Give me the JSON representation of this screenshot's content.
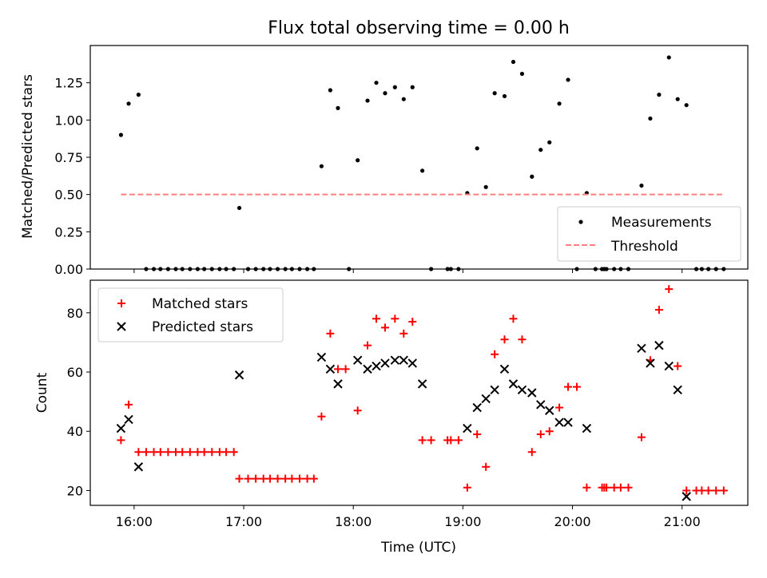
{
  "chart_data": [
    {
      "type": "scatter",
      "title": "Flux total observing time = 0.00 h",
      "xlabel": "",
      "ylabel": "Matched/Predicted stars",
      "xlim": [
        15.6,
        21.6
      ],
      "ylim": [
        0.0,
        1.5
      ],
      "xticks": [
        16,
        17,
        18,
        19,
        20,
        21
      ],
      "yticks": [
        0.0,
        0.25,
        0.5,
        0.75,
        1.0,
        1.25
      ],
      "ytick_labels": [
        "0.00",
        "0.25",
        "0.50",
        "0.75",
        "1.00",
        "1.25"
      ],
      "legend_position": "lower-right",
      "series": [
        {
          "name": "Measurements",
          "kind": "scatter",
          "color": "#000000",
          "points": [
            [
              15.88,
              0.9
            ],
            [
              15.95,
              1.11
            ],
            [
              16.04,
              1.17
            ],
            [
              16.11,
              0.0
            ],
            [
              16.18,
              0.0
            ],
            [
              16.24,
              0.0
            ],
            [
              16.31,
              0.0
            ],
            [
              16.38,
              0.0
            ],
            [
              16.44,
              0.0
            ],
            [
              16.51,
              0.0
            ],
            [
              16.58,
              0.0
            ],
            [
              16.64,
              0.0
            ],
            [
              16.71,
              0.0
            ],
            [
              16.78,
              0.0
            ],
            [
              16.84,
              0.0
            ],
            [
              16.91,
              0.0
            ],
            [
              16.96,
              0.41
            ],
            [
              17.04,
              0.0
            ],
            [
              17.11,
              0.0
            ],
            [
              17.18,
              0.0
            ],
            [
              17.24,
              0.0
            ],
            [
              17.31,
              0.0
            ],
            [
              17.38,
              0.0
            ],
            [
              17.44,
              0.0
            ],
            [
              17.51,
              0.0
            ],
            [
              17.58,
              0.0
            ],
            [
              17.64,
              0.0
            ],
            [
              17.71,
              0.69
            ],
            [
              17.79,
              1.2
            ],
            [
              17.86,
              1.08
            ],
            [
              17.96,
              0.0
            ],
            [
              18.04,
              0.73
            ],
            [
              18.13,
              1.13
            ],
            [
              18.21,
              1.25
            ],
            [
              18.29,
              1.18
            ],
            [
              18.38,
              1.22
            ],
            [
              18.46,
              1.14
            ],
            [
              18.54,
              1.22
            ],
            [
              18.63,
              0.66
            ],
            [
              18.71,
              0.0
            ],
            [
              18.86,
              0.0
            ],
            [
              18.89,
              0.0
            ],
            [
              18.96,
              0.0
            ],
            [
              19.04,
              0.51
            ],
            [
              19.13,
              0.81
            ],
            [
              19.21,
              0.55
            ],
            [
              19.29,
              1.18
            ],
            [
              19.38,
              1.16
            ],
            [
              19.46,
              1.39
            ],
            [
              19.54,
              1.31
            ],
            [
              19.63,
              0.62
            ],
            [
              19.71,
              0.8
            ],
            [
              19.79,
              0.85
            ],
            [
              19.88,
              1.11
            ],
            [
              19.96,
              1.27
            ],
            [
              20.04,
              0.0
            ],
            [
              20.13,
              0.51
            ],
            [
              20.21,
              0.0
            ],
            [
              20.27,
              0.0
            ],
            [
              20.29,
              0.0
            ],
            [
              20.31,
              0.0
            ],
            [
              20.38,
              0.0
            ],
            [
              20.44,
              0.0
            ],
            [
              20.51,
              0.0
            ],
            [
              20.63,
              0.56
            ],
            [
              20.71,
              1.01
            ],
            [
              20.79,
              1.17
            ],
            [
              20.88,
              1.42
            ],
            [
              20.96,
              1.14
            ],
            [
              21.04,
              1.1
            ],
            [
              21.13,
              0.0
            ],
            [
              21.18,
              0.0
            ],
            [
              21.24,
              0.0
            ],
            [
              21.31,
              0.0
            ],
            [
              21.38,
              0.0
            ]
          ]
        },
        {
          "name": "Threshold",
          "kind": "dashed-line",
          "color": "#ff7f7f",
          "x": [
            15.88,
            21.38
          ],
          "y": [
            0.5,
            0.5
          ]
        }
      ]
    },
    {
      "type": "scatter",
      "title": "",
      "xlabel": "Time (UTC)",
      "ylabel": "Count",
      "xlim": [
        15.6,
        21.6
      ],
      "ylim": [
        15,
        91
      ],
      "xticks": [
        16,
        17,
        18,
        19,
        20,
        21
      ],
      "xtick_labels": [
        "16:00",
        "17:00",
        "18:00",
        "19:00",
        "20:00",
        "21:00"
      ],
      "yticks": [
        20,
        40,
        60,
        80
      ],
      "ytick_labels": [
        "20",
        "40",
        "60",
        "80"
      ],
      "legend_position": "top-left",
      "series": [
        {
          "name": "Matched stars",
          "marker": "plus",
          "color": "#ff0000",
          "points": [
            [
              15.88,
              37
            ],
            [
              15.95,
              49
            ],
            [
              16.04,
              33
            ],
            [
              16.11,
              33
            ],
            [
              16.18,
              33
            ],
            [
              16.24,
              33
            ],
            [
              16.31,
              33
            ],
            [
              16.38,
              33
            ],
            [
              16.44,
              33
            ],
            [
              16.51,
              33
            ],
            [
              16.58,
              33
            ],
            [
              16.64,
              33
            ],
            [
              16.71,
              33
            ],
            [
              16.78,
              33
            ],
            [
              16.84,
              33
            ],
            [
              16.91,
              33
            ],
            [
              16.96,
              24
            ],
            [
              17.04,
              24
            ],
            [
              17.11,
              24
            ],
            [
              17.18,
              24
            ],
            [
              17.24,
              24
            ],
            [
              17.31,
              24
            ],
            [
              17.38,
              24
            ],
            [
              17.44,
              24
            ],
            [
              17.51,
              24
            ],
            [
              17.58,
              24
            ],
            [
              17.64,
              24
            ],
            [
              17.71,
              45
            ],
            [
              17.79,
              73
            ],
            [
              17.86,
              61
            ],
            [
              17.93,
              61
            ],
            [
              18.04,
              47
            ],
            [
              18.13,
              69
            ],
            [
              18.21,
              78
            ],
            [
              18.29,
              75
            ],
            [
              18.38,
              78
            ],
            [
              18.46,
              73
            ],
            [
              18.54,
              77
            ],
            [
              18.63,
              37
            ],
            [
              18.71,
              37
            ],
            [
              18.86,
              37
            ],
            [
              18.89,
              37
            ],
            [
              18.96,
              37
            ],
            [
              19.04,
              21
            ],
            [
              19.13,
              39
            ],
            [
              19.21,
              28
            ],
            [
              19.29,
              66
            ],
            [
              19.38,
              71
            ],
            [
              19.46,
              78
            ],
            [
              19.54,
              71
            ],
            [
              19.63,
              33
            ],
            [
              19.71,
              39
            ],
            [
              19.79,
              40
            ],
            [
              19.88,
              48
            ],
            [
              19.96,
              55
            ],
            [
              20.04,
              55
            ],
            [
              20.13,
              21
            ],
            [
              20.27,
              21
            ],
            [
              20.29,
              21
            ],
            [
              20.31,
              21
            ],
            [
              20.38,
              21
            ],
            [
              20.44,
              21
            ],
            [
              20.51,
              21
            ],
            [
              20.63,
              38
            ],
            [
              20.71,
              64
            ],
            [
              20.79,
              81
            ],
            [
              20.88,
              88
            ],
            [
              20.96,
              62
            ],
            [
              21.04,
              20
            ],
            [
              21.13,
              20
            ],
            [
              21.18,
              20
            ],
            [
              21.24,
              20
            ],
            [
              21.31,
              20
            ],
            [
              21.38,
              20
            ]
          ]
        },
        {
          "name": "Predicted stars",
          "marker": "x",
          "color": "#000000",
          "points": [
            [
              15.88,
              41
            ],
            [
              15.95,
              44
            ],
            [
              16.04,
              28
            ],
            [
              16.96,
              59
            ],
            [
              17.71,
              65
            ],
            [
              17.79,
              61
            ],
            [
              17.86,
              56
            ],
            [
              18.04,
              64
            ],
            [
              18.13,
              61
            ],
            [
              18.21,
              62
            ],
            [
              18.29,
              63
            ],
            [
              18.38,
              64
            ],
            [
              18.46,
              64
            ],
            [
              18.54,
              63
            ],
            [
              18.63,
              56
            ],
            [
              19.04,
              41
            ],
            [
              19.13,
              48
            ],
            [
              19.21,
              51
            ],
            [
              19.29,
              54
            ],
            [
              19.38,
              61
            ],
            [
              19.46,
              56
            ],
            [
              19.54,
              54
            ],
            [
              19.63,
              53
            ],
            [
              19.71,
              49
            ],
            [
              19.79,
              47
            ],
            [
              19.88,
              43
            ],
            [
              19.96,
              43
            ],
            [
              20.13,
              41
            ],
            [
              20.63,
              68
            ],
            [
              20.71,
              63
            ],
            [
              20.79,
              69
            ],
            [
              20.88,
              62
            ],
            [
              20.96,
              54
            ],
            [
              21.04,
              18
            ]
          ]
        }
      ]
    }
  ]
}
